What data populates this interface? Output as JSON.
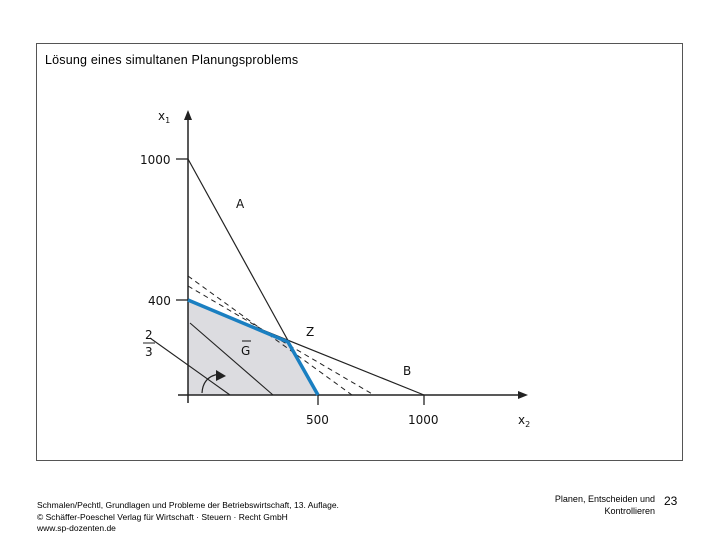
{
  "slide": {
    "title": "Lösung eines simultanen Planungsproblems"
  },
  "diagram": {
    "axis_x_label_main": "x",
    "axis_x_label_sub": "2",
    "axis_y_label_main": "x",
    "axis_y_label_sub": "1",
    "x_ticks": [
      "500",
      "1000"
    ],
    "y_ticks": [
      "1000",
      "400"
    ],
    "fraction_numerator": "2",
    "fraction_denominator": "3",
    "line_a_label": "A",
    "line_b_label": "B",
    "point_z_label": "Z",
    "region_label": "G",
    "colors": {
      "feasible_fill": "#dcdce0",
      "optimal_path": "#1a7fc1",
      "lines": "#222222"
    }
  },
  "footer": {
    "citation_line1": "Schmalen/Pechtl, Grundlagen und Probleme der Betriebswirtschaft, 13. Auflage.",
    "citation_line2": "© Schäffer-Poeschel Verlag für Wirtschaft · Steuern · Recht GmbH",
    "citation_line3": "www.sp-dozenten.de",
    "section_line1": "Planen, Entscheiden und",
    "section_line2": "Kontrollieren",
    "page_number": "23"
  }
}
